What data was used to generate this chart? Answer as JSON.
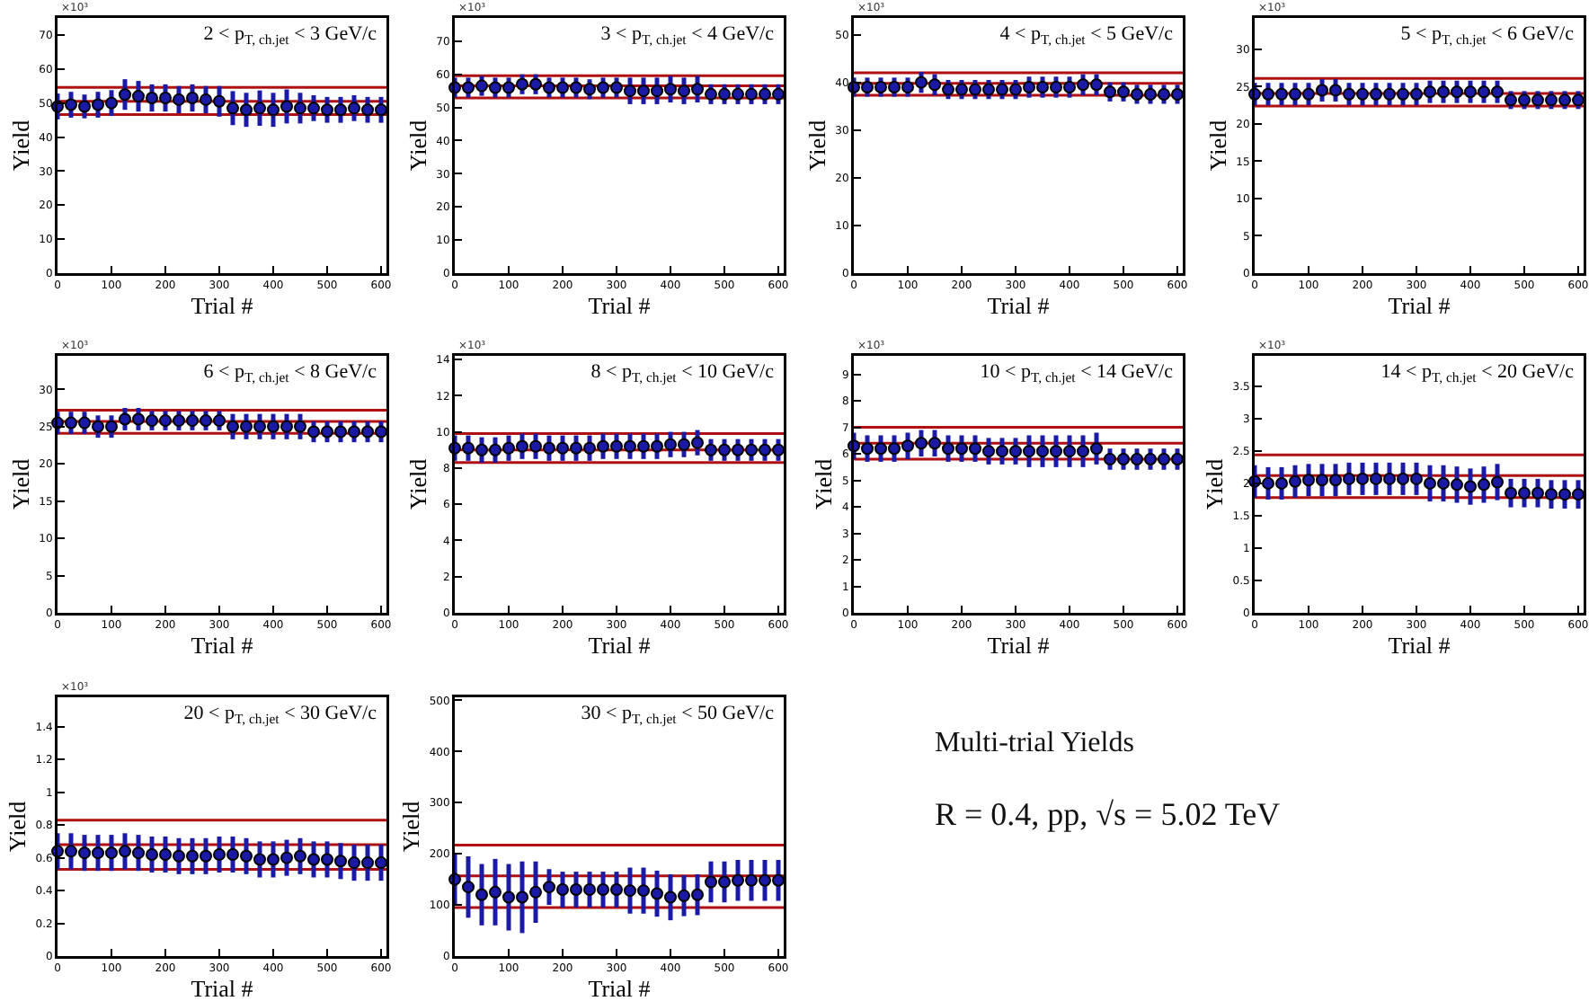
{
  "chart_data": [
    {
      "type": "scatter",
      "title": "2 < p$_{T, ch.jet}$ < 3 GeV/c",
      "xlabel": "Trial #",
      "ylabel": "Yield",
      "annotations": [
        "×10³"
      ],
      "xlim": [
        0,
        610
      ],
      "xticks": [
        0,
        100,
        200,
        300,
        400,
        500,
        600
      ],
      "ylim": [
        0,
        75
      ],
      "yticks": [
        0,
        10,
        20,
        30,
        40,
        50,
        60,
        70
      ],
      "marker": "circle",
      "x": [
        0,
        25,
        50,
        75,
        100,
        125,
        150,
        175,
        200,
        225,
        250,
        275,
        300,
        325,
        350,
        375,
        400,
        425,
        450,
        475,
        500,
        525,
        550,
        575,
        600
      ],
      "series": [
        {
          "color": "#1a1aa6",
          "values": [
            49,
            49.5,
            49,
            49.5,
            50,
            52.5,
            52,
            51.5,
            51.5,
            51,
            51.5,
            51,
            50.5,
            48.5,
            48,
            48.5,
            48,
            49,
            48.5,
            48.5,
            48,
            48,
            48.5,
            48,
            48
          ],
          "errors": [
            3.8,
            3.8,
            3.5,
            3.8,
            3.8,
            4.5,
            4.5,
            4,
            4,
            4,
            4,
            4,
            4.5,
            5,
            5,
            5.2,
            5,
            5,
            4.5,
            3.8,
            3.8,
            3.8,
            3.8,
            3.8,
            3.8
          ]
        }
      ],
      "ref_lines": [
        {
          "axis": "y",
          "value": 54.6,
          "color": "#b01010"
        },
        {
          "axis": "y",
          "value": 50.5,
          "color": "#b01010"
        },
        {
          "axis": "y",
          "value": 46.6,
          "color": "#b01010"
        }
      ]
    },
    {
      "type": "scatter",
      "title": "3 < p$_{T, ch.jet}$ < 4 GeV/c",
      "xlabel": "Trial #",
      "ylabel": "Yield",
      "annotations": [
        "×10³"
      ],
      "xlim": [
        0,
        610
      ],
      "xticks": [
        0,
        100,
        200,
        300,
        400,
        500,
        600
      ],
      "ylim": [
        0,
        77
      ],
      "yticks": [
        0,
        10,
        20,
        30,
        40,
        50,
        60,
        70
      ],
      "marker": "circle",
      "x": [
        0,
        25,
        50,
        75,
        100,
        125,
        150,
        175,
        200,
        225,
        250,
        275,
        300,
        325,
        350,
        375,
        400,
        425,
        450,
        475,
        500,
        525,
        550,
        575,
        600
      ],
      "series": [
        {
          "color": "#1a1aa6",
          "values": [
            56,
            56,
            56.5,
            56,
            56,
            57,
            57,
            56,
            56,
            56,
            55.5,
            56,
            56,
            55,
            55,
            55,
            55.5,
            55,
            55.5,
            54,
            54,
            54,
            54,
            54,
            54
          ],
          "errors": [
            3,
            3,
            3,
            3,
            3,
            3,
            3,
            3,
            3,
            3,
            3,
            3,
            3,
            4,
            4,
            4,
            4,
            4,
            4,
            3,
            3,
            3,
            3,
            3,
            3
          ]
        }
      ],
      "ref_lines": [
        {
          "axis": "y",
          "value": 59.6,
          "color": "#b01010"
        },
        {
          "axis": "y",
          "value": 56.5,
          "color": "#b01010"
        },
        {
          "axis": "y",
          "value": 52.9,
          "color": "#b01010"
        }
      ]
    },
    {
      "type": "scatter",
      "title": "4 < p$_{T, ch.jet}$ < 5 GeV/c",
      "xlabel": "Trial #",
      "ylabel": "Yield",
      "annotations": [
        "×10³"
      ],
      "xlim": [
        0,
        610
      ],
      "xticks": [
        0,
        100,
        200,
        300,
        400,
        500,
        600
      ],
      "ylim": [
        0,
        53.5
      ],
      "yticks": [
        0,
        10,
        20,
        30,
        40,
        50
      ],
      "marker": "circle",
      "x": [
        0,
        25,
        50,
        75,
        100,
        125,
        150,
        175,
        200,
        225,
        250,
        275,
        300,
        325,
        350,
        375,
        400,
        425,
        450,
        475,
        500,
        525,
        550,
        575,
        600
      ],
      "series": [
        {
          "color": "#1a1aa6",
          "values": [
            39,
            39,
            39,
            39,
            39,
            40,
            39.5,
            38.5,
            38.5,
            38.5,
            38.5,
            38.5,
            38.5,
            39,
            39,
            39,
            39,
            39.5,
            39.5,
            38,
            38,
            37.5,
            37.5,
            37.5,
            37.5
          ],
          "errors": [
            2,
            2,
            2,
            2,
            2,
            2.2,
            2.2,
            2,
            2,
            2,
            2,
            2,
            2,
            2.2,
            2.2,
            2.2,
            2.2,
            2.2,
            2.2,
            2,
            2,
            2,
            2,
            2,
            2
          ]
        }
      ],
      "ref_lines": [
        {
          "axis": "y",
          "value": 42,
          "color": "#b01010"
        },
        {
          "axis": "y",
          "value": 39.8,
          "color": "#b01010"
        },
        {
          "axis": "y",
          "value": 37.3,
          "color": "#b01010"
        }
      ]
    },
    {
      "type": "scatter",
      "title": "5 < p$_{T, ch.jet}$ < 6 GeV/c",
      "xlabel": "Trial #",
      "ylabel": "Yield",
      "annotations": [
        "×10³"
      ],
      "xlim": [
        0,
        610
      ],
      "xticks": [
        0,
        100,
        200,
        300,
        400,
        500,
        600
      ],
      "ylim": [
        0,
        34.2
      ],
      "yticks": [
        0,
        5,
        10,
        15,
        20,
        25,
        30
      ],
      "marker": "circle",
      "x": [
        0,
        25,
        50,
        75,
        100,
        125,
        150,
        175,
        200,
        225,
        250,
        275,
        300,
        325,
        350,
        375,
        400,
        425,
        450,
        475,
        500,
        525,
        550,
        575,
        600
      ],
      "series": [
        {
          "color": "#1a1aa6",
          "values": [
            24,
            24,
            24,
            24,
            24,
            24.5,
            24.5,
            24,
            24,
            24,
            24,
            24,
            24,
            24.3,
            24.3,
            24.3,
            24.3,
            24.3,
            24.3,
            23.2,
            23.2,
            23.2,
            23.2,
            23.2,
            23.2
          ],
          "errors": [
            1.5,
            1.5,
            1.5,
            1.5,
            1.5,
            1.5,
            1.5,
            1.5,
            1.5,
            1.5,
            1.5,
            1.5,
            1.5,
            1.5,
            1.5,
            1.5,
            1.5,
            1.5,
            1.5,
            1.2,
            1.2,
            1.2,
            1.2,
            1.2,
            1.2
          ]
        }
      ],
      "ref_lines": [
        {
          "axis": "y",
          "value": 26.1,
          "color": "#b01010"
        },
        {
          "axis": "y",
          "value": 24.1,
          "color": "#b01010"
        },
        {
          "axis": "y",
          "value": 22.4,
          "color": "#b01010"
        }
      ]
    },
    {
      "type": "scatter",
      "title": "6 < p$_{T, ch.jet}$ < 8 GeV/c",
      "xlabel": "Trial #",
      "ylabel": "Yield",
      "annotations": [
        "×10³"
      ],
      "xlim": [
        0,
        610
      ],
      "xticks": [
        0,
        100,
        200,
        300,
        400,
        500,
        600
      ],
      "ylim": [
        0,
        34.5
      ],
      "yticks": [
        0,
        5,
        10,
        15,
        20,
        25,
        30
      ],
      "marker": "circle",
      "x": [
        0,
        25,
        50,
        75,
        100,
        125,
        150,
        175,
        200,
        225,
        250,
        275,
        300,
        325,
        350,
        375,
        400,
        425,
        450,
        475,
        500,
        525,
        550,
        575,
        600
      ],
      "series": [
        {
          "color": "#1a1aa6",
          "values": [
            25.5,
            25.5,
            25.5,
            25,
            25,
            26,
            26,
            25.8,
            25.8,
            25.8,
            25.8,
            25.8,
            25.8,
            25,
            25,
            25,
            25,
            25,
            25,
            24.3,
            24.3,
            24.3,
            24.3,
            24.3,
            24.3
          ],
          "errors": [
            1.5,
            1.5,
            1.5,
            1.5,
            1.5,
            1.5,
            1.5,
            1.3,
            1.3,
            1.3,
            1.3,
            1.3,
            1.3,
            1.7,
            1.7,
            1.7,
            1.7,
            1.7,
            1.7,
            1.4,
            1.4,
            1.4,
            1.4,
            1.4,
            1.4
          ]
        }
      ],
      "ref_lines": [
        {
          "axis": "y",
          "value": 27.2,
          "color": "#b01010"
        },
        {
          "axis": "y",
          "value": 25.7,
          "color": "#b01010"
        },
        {
          "axis": "y",
          "value": 24.1,
          "color": "#b01010"
        }
      ]
    },
    {
      "type": "scatter",
      "title": "8 < p$_{T, ch.jet}$ < 10 GeV/c",
      "xlabel": "Trial #",
      "ylabel": "Yield",
      "annotations": [
        "×10³"
      ],
      "xlim": [
        0,
        610
      ],
      "xticks": [
        0,
        100,
        200,
        300,
        400,
        500,
        600
      ],
      "ylim": [
        0,
        14.2
      ],
      "yticks": [
        0,
        2,
        4,
        6,
        8,
        10,
        12,
        14
      ],
      "marker": "circle",
      "x": [
        0,
        25,
        50,
        75,
        100,
        125,
        150,
        175,
        200,
        225,
        250,
        275,
        300,
        325,
        350,
        375,
        400,
        425,
        450,
        475,
        500,
        525,
        550,
        575,
        600
      ],
      "series": [
        {
          "color": "#1a1aa6",
          "values": [
            9.1,
            9.1,
            9,
            9,
            9.1,
            9.2,
            9.2,
            9.1,
            9.1,
            9.1,
            9.1,
            9.2,
            9.2,
            9.2,
            9.2,
            9.2,
            9.3,
            9.3,
            9.4,
            9,
            9,
            9,
            9,
            9,
            9
          ],
          "errors": [
            0.7,
            0.7,
            0.7,
            0.7,
            0.7,
            0.7,
            0.7,
            0.7,
            0.7,
            0.7,
            0.7,
            0.7,
            0.7,
            0.7,
            0.7,
            0.7,
            0.7,
            0.7,
            0.7,
            0.6,
            0.6,
            0.6,
            0.6,
            0.6,
            0.6
          ]
        }
      ],
      "ref_lines": [
        {
          "axis": "y",
          "value": 9.9,
          "color": "#b01010"
        },
        {
          "axis": "y",
          "value": 9,
          "color": "#b01010"
        },
        {
          "axis": "y",
          "value": 8.3,
          "color": "#b01010"
        }
      ]
    },
    {
      "type": "scatter",
      "title": "10 < p$_{T, ch.jet}$ < 14 GeV/c",
      "xlabel": "Trial #",
      "ylabel": "Yield",
      "annotations": [
        "×10³"
      ],
      "xlim": [
        0,
        610
      ],
      "xticks": [
        0,
        100,
        200,
        300,
        400,
        500,
        600
      ],
      "ylim": [
        0,
        9.7
      ],
      "yticks": [
        0,
        1,
        2,
        3,
        4,
        5,
        6,
        7,
        8,
        9
      ],
      "marker": "circle",
      "x": [
        0,
        25,
        50,
        75,
        100,
        125,
        150,
        175,
        200,
        225,
        250,
        275,
        300,
        325,
        350,
        375,
        400,
        425,
        450,
        475,
        500,
        525,
        550,
        575,
        600
      ],
      "series": [
        {
          "color": "#1a1aa6",
          "values": [
            6.3,
            6.2,
            6.2,
            6.2,
            6.3,
            6.4,
            6.4,
            6.2,
            6.2,
            6.2,
            6.1,
            6.1,
            6.1,
            6.1,
            6.1,
            6.1,
            6.1,
            6.1,
            6.2,
            5.8,
            5.8,
            5.8,
            5.8,
            5.8,
            5.8
          ],
          "errors": [
            0.5,
            0.5,
            0.5,
            0.5,
            0.5,
            0.5,
            0.5,
            0.5,
            0.5,
            0.5,
            0.5,
            0.5,
            0.5,
            0.6,
            0.6,
            0.6,
            0.6,
            0.6,
            0.6,
            0.4,
            0.4,
            0.4,
            0.4,
            0.4,
            0.4
          ]
        }
      ],
      "ref_lines": [
        {
          "axis": "y",
          "value": 7,
          "color": "#b01010"
        },
        {
          "axis": "y",
          "value": 6.4,
          "color": "#b01010"
        },
        {
          "axis": "y",
          "value": 5.8,
          "color": "#b01010"
        }
      ]
    },
    {
      "type": "scatter",
      "title": "14 < p$_{T, ch.jet}$ < 20 GeV/c",
      "xlabel": "Trial #",
      "ylabel": "Yield",
      "annotations": [
        "×10³"
      ],
      "xlim": [
        0,
        610
      ],
      "xticks": [
        0,
        100,
        200,
        300,
        400,
        500,
        600
      ],
      "ylim": [
        0,
        3.97
      ],
      "yticks": [
        0,
        0.5,
        1,
        1.5,
        2,
        2.5,
        3,
        3.5
      ],
      "marker": "circle",
      "x": [
        0,
        25,
        50,
        75,
        100,
        125,
        150,
        175,
        200,
        225,
        250,
        275,
        300,
        325,
        350,
        375,
        400,
        425,
        450,
        475,
        500,
        525,
        550,
        575,
        600
      ],
      "series": [
        {
          "color": "#1a1aa6",
          "values": [
            2.03,
            2,
            2,
            2.03,
            2.05,
            2.05,
            2.05,
            2.07,
            2.07,
            2.07,
            2.07,
            2.07,
            2.07,
            2,
            2,
            1.98,
            1.95,
            1.98,
            2.02,
            1.85,
            1.85,
            1.85,
            1.83,
            1.83,
            1.83
          ],
          "errors": [
            0.25,
            0.25,
            0.25,
            0.25,
            0.25,
            0.25,
            0.25,
            0.25,
            0.25,
            0.25,
            0.25,
            0.25,
            0.25,
            0.28,
            0.28,
            0.28,
            0.28,
            0.28,
            0.28,
            0.22,
            0.22,
            0.22,
            0.22,
            0.22,
            0.22
          ]
        }
      ],
      "ref_lines": [
        {
          "axis": "y",
          "value": 2.44,
          "color": "#b01010"
        },
        {
          "axis": "y",
          "value": 2.12,
          "color": "#b01010"
        },
        {
          "axis": "y",
          "value": 1.78,
          "color": "#b01010"
        }
      ]
    },
    {
      "type": "scatter",
      "title": "20 < p$_{T, ch.jet}$ < 30 GeV/c",
      "xlabel": "Trial #",
      "ylabel": "Yield",
      "annotations": [
        "×10³"
      ],
      "xlim": [
        0,
        610
      ],
      "xticks": [
        0,
        100,
        200,
        300,
        400,
        500,
        600
      ],
      "ylim": [
        0,
        1.58
      ],
      "yticks": [
        0,
        0.2,
        0.4,
        0.6,
        0.8,
        1,
        1.2,
        1.4
      ],
      "marker": "circle",
      "x": [
        0,
        25,
        50,
        75,
        100,
        125,
        150,
        175,
        200,
        225,
        250,
        275,
        300,
        325,
        350,
        375,
        400,
        425,
        450,
        475,
        500,
        525,
        550,
        575,
        600
      ],
      "series": [
        {
          "color": "#1a1aa6",
          "values": [
            0.64,
            0.64,
            0.63,
            0.63,
            0.63,
            0.64,
            0.63,
            0.62,
            0.62,
            0.61,
            0.61,
            0.61,
            0.62,
            0.62,
            0.61,
            0.59,
            0.59,
            0.6,
            0.61,
            0.59,
            0.59,
            0.58,
            0.57,
            0.57,
            0.57
          ],
          "errors": [
            0.11,
            0.11,
            0.11,
            0.11,
            0.11,
            0.11,
            0.11,
            0.11,
            0.11,
            0.11,
            0.11,
            0.11,
            0.11,
            0.11,
            0.11,
            0.11,
            0.11,
            0.11,
            0.11,
            0.11,
            0.11,
            0.11,
            0.11,
            0.11,
            0.11
          ]
        }
      ],
      "ref_lines": [
        {
          "axis": "y",
          "value": 0.83,
          "color": "#b01010"
        },
        {
          "axis": "y",
          "value": 0.68,
          "color": "#b01010"
        },
        {
          "axis": "y",
          "value": 0.53,
          "color": "#b01010"
        }
      ]
    },
    {
      "type": "scatter",
      "title": "30 < p$_{T, ch.jet}$ < 50 GeV/c",
      "xlabel": "Trial #",
      "ylabel": "Yield",
      "xlim": [
        0,
        610
      ],
      "xticks": [
        0,
        100,
        200,
        300,
        400,
        500,
        600
      ],
      "ylim": [
        0,
        506
      ],
      "yticks": [
        0,
        100,
        200,
        300,
        400,
        500
      ],
      "marker": "circle",
      "x": [
        0,
        25,
        50,
        75,
        100,
        125,
        150,
        175,
        200,
        225,
        250,
        275,
        300,
        325,
        350,
        375,
        400,
        425,
        450,
        475,
        500,
        525,
        550,
        575,
        600
      ],
      "series": [
        {
          "color": "#1a1aa6",
          "values": [
            150,
            135,
            120,
            125,
            115,
            115,
            125,
            135,
            130,
            130,
            130,
            130,
            130,
            128,
            128,
            122,
            115,
            118,
            120,
            145,
            145,
            148,
            148,
            148,
            148
          ],
          "errors": [
            50,
            60,
            60,
            65,
            65,
            70,
            60,
            35,
            35,
            35,
            35,
            35,
            35,
            45,
            45,
            45,
            45,
            40,
            40,
            40,
            40,
            40,
            40,
            40,
            40
          ]
        }
      ],
      "ref_lines": [
        {
          "axis": "y",
          "value": 217,
          "color": "#b01010"
        },
        {
          "axis": "y",
          "value": 157,
          "color": "#b01010"
        },
        {
          "axis": "y",
          "value": 95,
          "color": "#b01010"
        }
      ]
    },
    {
      "type": "other",
      "title": "Multi-trial Yields",
      "subtitle": "R = 0.4, pp, √s = 5.02 TeV"
    }
  ]
}
